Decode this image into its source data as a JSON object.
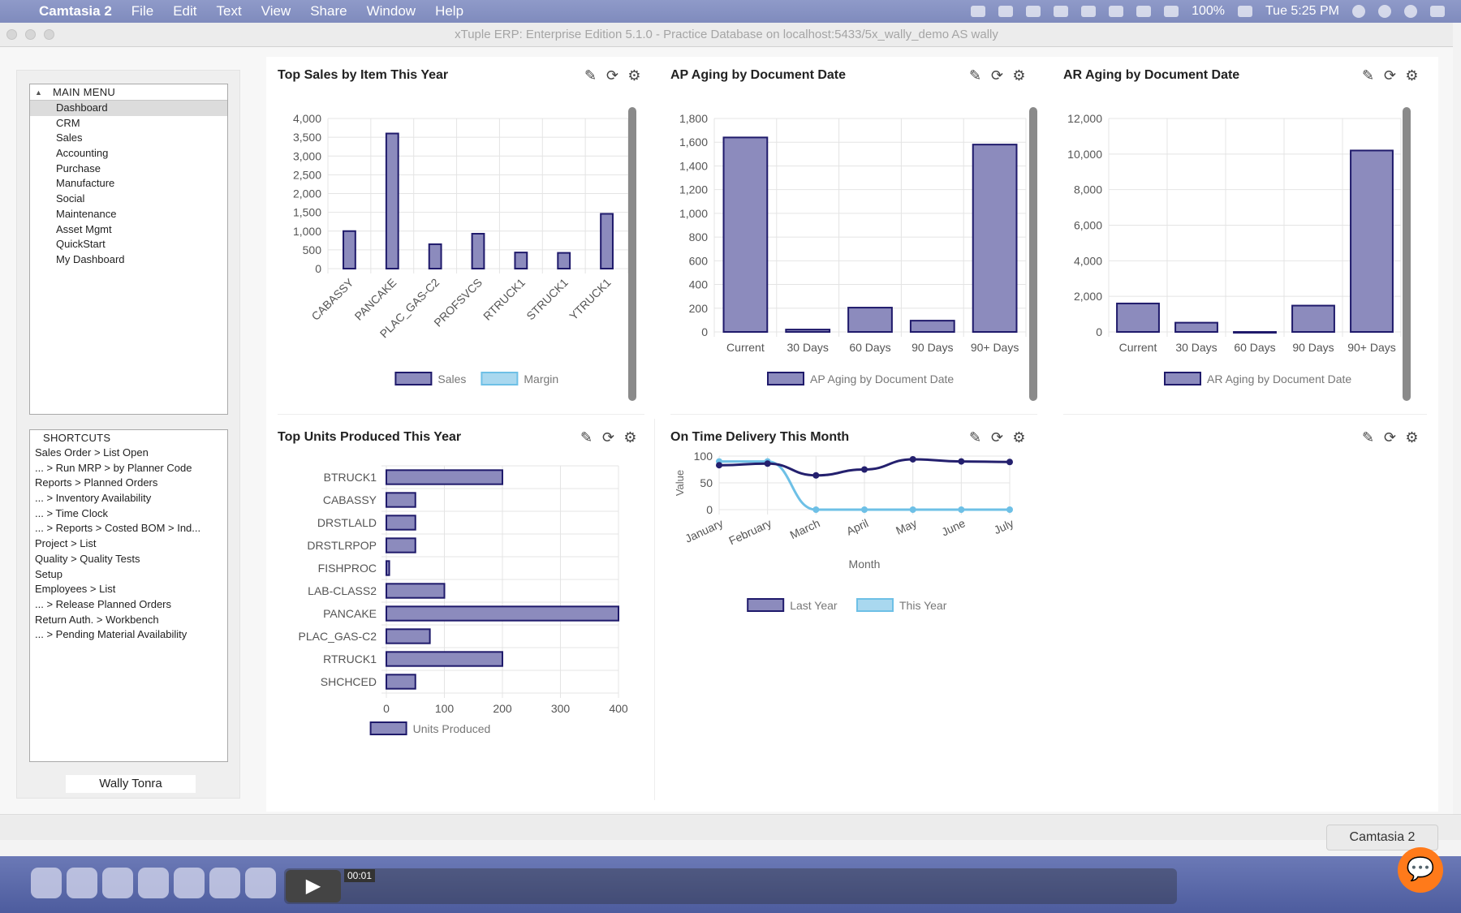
{
  "menubar": {
    "app_name": "Camtasia 2",
    "items": [
      "File",
      "Edit",
      "Text",
      "View",
      "Share",
      "Window",
      "Help"
    ],
    "battery": "100%",
    "clock": "Tue 5:25 PM"
  },
  "window": {
    "title": "xTuple ERP: Enterprise Edition 5.1.0 - Practice Database on localhost:5433/5x_wally_demo AS wally"
  },
  "sidebar": {
    "main_menu_header": "MAIN MENU",
    "main_menu_items": [
      "Dashboard",
      "CRM",
      "Sales",
      "Accounting",
      "Purchase",
      "Manufacture",
      "Social",
      "Maintenance",
      "Asset Mgmt",
      "QuickStart",
      "My Dashboard"
    ],
    "selected": "Dashboard",
    "shortcuts_header": "SHORTCUTS",
    "shortcuts": [
      "Sales Order > List Open",
      "... > Run MRP > by Planner Code",
      "Reports > Planned Orders",
      "... > Inventory Availability",
      "... > Time Clock",
      "... > Reports > Costed BOM > Ind...",
      "Project > List",
      "Quality > Quality Tests",
      "Setup",
      "Employees > List",
      "... > Release Planned Orders",
      "Return Auth. > Workbench",
      "... > Pending Material Availability"
    ],
    "user_name": "Wally Tonra"
  },
  "panels": {
    "top_sales": {
      "title": "Top Sales by Item This Year"
    },
    "ap_aging": {
      "title": "AP Aging by Document Date"
    },
    "ar_aging": {
      "title": "AR Aging by Document Date"
    },
    "units_produced": {
      "title": "Top Units Produced This Year"
    },
    "on_time": {
      "title": "On Time Delivery This Month"
    }
  },
  "chart_data": [
    {
      "id": "top_sales",
      "type": "bar",
      "categories": [
        "CABASSY",
        "PANCAKE",
        "PLAC_GAS-C2",
        "PROFSVCS",
        "RTRUCK1",
        "STRUCK1",
        "YTRUCK1"
      ],
      "series": [
        {
          "name": "Sales",
          "values": [
            1000,
            3600,
            650,
            930,
            430,
            420,
            1460
          ]
        },
        {
          "name": "Margin",
          "values": [
            0,
            0,
            0,
            0,
            0,
            0,
            0
          ]
        }
      ],
      "yticks": [
        "0",
        "500",
        "1,000",
        "1,500",
        "2,000",
        "2,500",
        "3,000",
        "3,500",
        "4,000"
      ],
      "ylim": [
        0,
        4000
      ],
      "legend": "bottom"
    },
    {
      "id": "ap_aging",
      "type": "bar",
      "categories": [
        "Current",
        "30 Days",
        "60 Days",
        "90 Days",
        "90+ Days"
      ],
      "series": [
        {
          "name": "AP Aging by Document Date",
          "values": [
            1640,
            20,
            205,
            95,
            1580
          ]
        }
      ],
      "yticks": [
        "0",
        "200",
        "400",
        "600",
        "800",
        "1,000",
        "1,200",
        "1,400",
        "1,600",
        "1,800"
      ],
      "ylim": [
        0,
        1800
      ],
      "legend": "bottom"
    },
    {
      "id": "ar_aging",
      "type": "bar",
      "categories": [
        "Current",
        "30 Days",
        "60 Days",
        "90 Days",
        "90+ Days"
      ],
      "series": [
        {
          "name": "AR Aging by Document Date",
          "values": [
            1600,
            520,
            0,
            1480,
            10200
          ]
        }
      ],
      "yticks": [
        "0",
        "2,000",
        "4,000",
        "6,000",
        "8,000",
        "10,000",
        "12,000"
      ],
      "ylim": [
        0,
        12000
      ],
      "legend": "bottom"
    },
    {
      "id": "units_produced",
      "type": "bar",
      "orientation": "horizontal",
      "categories": [
        "BTRUCK1",
        "CABASSY",
        "DRSTLALD",
        "DRSTLRPOP",
        "FISHPROC",
        "LAB-CLASS2",
        "PANCAKE",
        "PLAC_GAS-C2",
        "RTRUCK1",
        "SHCHCED"
      ],
      "series": [
        {
          "name": "Units Produced",
          "values": [
            200,
            50,
            50,
            50,
            5,
            100,
            400,
            75,
            200,
            50
          ]
        }
      ],
      "xticks": [
        "0",
        "100",
        "200",
        "300",
        "400"
      ],
      "xlim": [
        0,
        400
      ],
      "legend": "bottom"
    },
    {
      "id": "on_time",
      "type": "line",
      "x": [
        "January",
        "February",
        "March",
        "April",
        "May",
        "June",
        "July"
      ],
      "series": [
        {
          "name": "Last Year",
          "values": [
            83,
            86,
            64,
            75,
            94,
            90,
            89
          ]
        },
        {
          "name": "This Year",
          "values": [
            90,
            90,
            0,
            0,
            0,
            0,
            0
          ]
        }
      ],
      "yticks": [
        "0",
        "50",
        "100"
      ],
      "ylim": [
        0,
        100
      ],
      "xlabel": "Month",
      "ylabel": "Value",
      "legend": "bottom"
    }
  ],
  "colors": {
    "bar_fill": "#8c8bbd",
    "bar_stroke": "#1f1a6b",
    "light_fill": "#a9d8ef",
    "light_stroke": "#6ec0e6",
    "line_dark": "#24206e",
    "line_light": "#6ec0e6",
    "grid": "#e4e4e4"
  },
  "icons": {
    "edit": "edit-icon",
    "refresh": "refresh-icon",
    "settings": "gear-icon"
  },
  "statusbar": {
    "tooltip": "Camtasia 2"
  },
  "video": {
    "time": "00:01"
  }
}
